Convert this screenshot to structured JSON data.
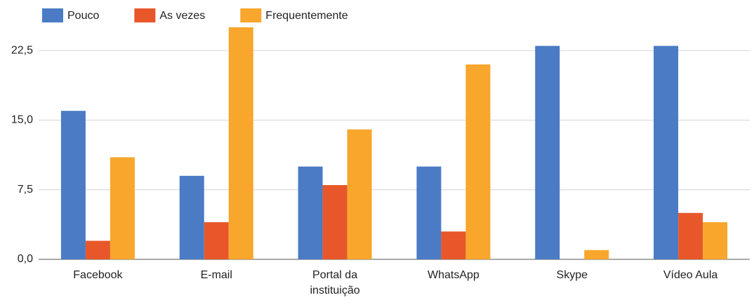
{
  "chart_data": {
    "type": "bar",
    "categories": [
      "Facebook",
      "E-mail",
      "Portal da instituição",
      "WhatsApp",
      "Skype",
      "Vídeo Aula"
    ],
    "series": [
      {
        "name": "Pouco",
        "color": "#4a7bc4",
        "values": [
          16,
          9,
          10,
          10,
          23,
          23
        ]
      },
      {
        "name": "As vezes",
        "color": "#e8572a",
        "values": [
          2,
          4,
          8,
          3,
          0,
          5
        ]
      },
      {
        "name": "Frequentemente",
        "color": "#f8a62c",
        "values": [
          11,
          25,
          14,
          21,
          1,
          4
        ]
      }
    ],
    "ylim": [
      0,
      25
    ],
    "yticks": [
      {
        "value": 0,
        "label": "0,0"
      },
      {
        "value": 7.5,
        "label": "7,5"
      },
      {
        "value": 15,
        "label": "15,0"
      },
      {
        "value": 22.5,
        "label": "22,5"
      }
    ],
    "grid": true,
    "legend": "top"
  }
}
